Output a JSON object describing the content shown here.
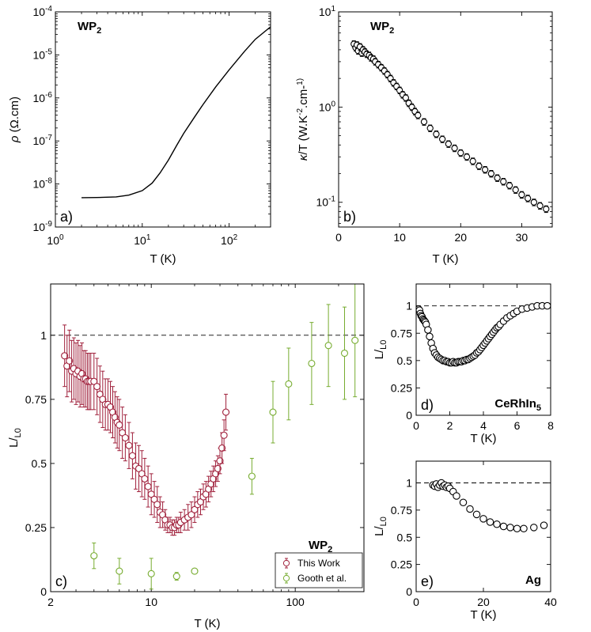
{
  "chart_data": [
    {
      "id": "a",
      "type": "line",
      "panel_label": "a)",
      "annotation": "WP",
      "annotation_sub": "2",
      "xlabel": "T (K)",
      "ylabel": "ρ (Ω.cm)",
      "xscale": "log",
      "yscale": "log",
      "xlim": [
        1,
        300
      ],
      "ylim": [
        1e-09,
        0.0001
      ],
      "xticks": [
        {
          "value": 1,
          "base": "10",
          "exp": "0"
        },
        {
          "value": 10,
          "base": "10",
          "exp": "1"
        },
        {
          "value": 100,
          "base": "10",
          "exp": "2"
        }
      ],
      "yticks": [
        {
          "value": 1e-09,
          "base": "10",
          "exp": "-9"
        },
        {
          "value": 1e-08,
          "base": "10",
          "exp": "-8"
        },
        {
          "value": 1e-07,
          "base": "10",
          "exp": "-7"
        },
        {
          "value": 1e-06,
          "base": "10",
          "exp": "-6"
        },
        {
          "value": 1e-05,
          "base": "10",
          "exp": "-5"
        },
        {
          "value": 0.0001,
          "base": "10",
          "exp": "-4"
        }
      ],
      "series": [
        {
          "color": "#000000",
          "x": [
            2,
            3,
            5,
            7,
            10,
            13,
            16,
            20,
            25,
            30,
            40,
            50,
            70,
            100,
            150,
            200,
            300
          ],
          "y": [
            4.8e-09,
            4.85e-09,
            5e-09,
            5.5e-09,
            7e-09,
            1.05e-08,
            1.8e-08,
            3.6e-08,
            8e-08,
            1.5e-07,
            3.6e-07,
            7e-07,
            1.8e-06,
            4.5e-06,
            1.2e-05,
            2.3e-05,
            4.5e-05
          ]
        }
      ]
    },
    {
      "id": "b",
      "type": "scatter",
      "panel_label": "b)",
      "annotation": "WP",
      "annotation_sub": "2",
      "xlabel": "T (K)",
      "ylabel": "κ/T (W.K-2.cm-1)",
      "xscale": "linear",
      "yscale": "log",
      "xlim": [
        0,
        35
      ],
      "ylim": [
        0.055,
        10
      ],
      "xticks": [
        0,
        10,
        20,
        30
      ],
      "yticks": [
        {
          "value": 0.1,
          "base": "10",
          "exp": "-1"
        },
        {
          "value": 1,
          "base": "10",
          "exp": "0"
        },
        {
          "value": 10,
          "base": "10",
          "exp": "1"
        }
      ],
      "series": [
        {
          "color": "#000000",
          "marker": "open-circle",
          "x": [
            2.5,
            2.8,
            3.0,
            3.2,
            3.5,
            3.8,
            4.0,
            4.3,
            4.6,
            5.0,
            5.3,
            5.7,
            6.0,
            6.5,
            7.0,
            7.5,
            8.0,
            8.5,
            9.0,
            9.5,
            10.0,
            10.5,
            11.0,
            11.5,
            12.0,
            12.5,
            13.0,
            14.0,
            15.0,
            16.0,
            17.0,
            18.0,
            19.0,
            20.0,
            21.0,
            22.0,
            23.0,
            24.0,
            25.0,
            26.0,
            27.0,
            28.0,
            29.0,
            30.0,
            31.0,
            32.0,
            33.0,
            34.0
          ],
          "y": [
            4.6,
            4.2,
            4.5,
            3.9,
            4.3,
            3.7,
            4.0,
            3.8,
            3.6,
            3.5,
            3.3,
            3.2,
            3.0,
            2.8,
            2.6,
            2.4,
            2.2,
            2.0,
            1.8,
            1.65,
            1.5,
            1.35,
            1.25,
            1.1,
            1.0,
            0.9,
            0.82,
            0.7,
            0.6,
            0.52,
            0.46,
            0.41,
            0.37,
            0.33,
            0.3,
            0.27,
            0.24,
            0.22,
            0.2,
            0.18,
            0.165,
            0.15,
            0.135,
            0.12,
            0.11,
            0.1,
            0.092,
            0.085
          ]
        }
      ]
    },
    {
      "id": "c",
      "type": "scatter",
      "panel_label": "c)",
      "annotation": "WP",
      "annotation_sub": "2",
      "xlabel": "T (K)",
      "ylabel": "L/L0",
      "xscale": "log",
      "yscale": "linear",
      "xlim": [
        2,
        300
      ],
      "ylim": [
        0,
        1.2
      ],
      "xticks": [
        {
          "value": 2,
          "label": "2"
        },
        {
          "value": 10,
          "label": "10"
        },
        {
          "value": 100,
          "label": "100"
        }
      ],
      "yticks": [
        {
          "value": 0,
          "label": "0"
        },
        {
          "value": 0.25,
          "label": "0.25"
        },
        {
          "value": 0.5,
          "label": "0.5"
        },
        {
          "value": 0.75,
          "label": "0.75"
        },
        {
          "value": 1,
          "label": "1"
        }
      ],
      "reference_line": 1,
      "legend": {
        "position": "bottom-right",
        "entries": [
          "This Work",
          "Gooth et al."
        ]
      },
      "series": [
        {
          "name": "This Work",
          "color": "#a0213c",
          "marker": "open-circle",
          "x": [
            2.5,
            2.6,
            2.7,
            2.8,
            2.9,
            3.0,
            3.1,
            3.2,
            3.3,
            3.4,
            3.5,
            3.6,
            3.7,
            3.8,
            4.0,
            4.2,
            4.4,
            4.6,
            4.8,
            5.0,
            5.2,
            5.4,
            5.6,
            5.8,
            6.0,
            6.3,
            6.6,
            7.0,
            7.4,
            7.8,
            8.2,
            8.6,
            9.0,
            9.5,
            10.0,
            10.5,
            11.0,
            11.5,
            12.0,
            12.5,
            13.0,
            13.5,
            14.0,
            14.5,
            15.0,
            15.5,
            16.0,
            17.0,
            18.0,
            19.0,
            20.0,
            21.0,
            22.0,
            23.0,
            24.0,
            25.0,
            26.0,
            27.0,
            28.0,
            29.0,
            30.0,
            31.0,
            32.0,
            33.0
          ],
          "y": [
            0.92,
            0.88,
            0.9,
            0.86,
            0.87,
            0.85,
            0.86,
            0.84,
            0.85,
            0.83,
            0.83,
            0.82,
            0.82,
            0.82,
            0.82,
            0.8,
            0.77,
            0.75,
            0.73,
            0.73,
            0.72,
            0.7,
            0.68,
            0.66,
            0.65,
            0.62,
            0.6,
            0.57,
            0.53,
            0.49,
            0.48,
            0.46,
            0.44,
            0.41,
            0.38,
            0.36,
            0.34,
            0.31,
            0.3,
            0.28,
            0.26,
            0.26,
            0.25,
            0.25,
            0.26,
            0.26,
            0.27,
            0.28,
            0.29,
            0.3,
            0.32,
            0.34,
            0.35,
            0.37,
            0.38,
            0.4,
            0.42,
            0.44,
            0.46,
            0.48,
            0.51,
            0.56,
            0.61,
            0.7
          ],
          "err": [
            0.12,
            0.12,
            0.12,
            0.12,
            0.12,
            0.12,
            0.12,
            0.12,
            0.12,
            0.11,
            0.11,
            0.11,
            0.11,
            0.11,
            0.11,
            0.11,
            0.11,
            0.11,
            0.1,
            0.1,
            0.1,
            0.1,
            0.1,
            0.1,
            0.1,
            0.1,
            0.09,
            0.09,
            0.09,
            0.09,
            0.09,
            0.09,
            0.08,
            0.08,
            0.08,
            0.07,
            0.07,
            0.06,
            0.05,
            0.04,
            0.03,
            0.03,
            0.03,
            0.03,
            0.03,
            0.03,
            0.04,
            0.04,
            0.05,
            0.05,
            0.05,
            0.05,
            0.05,
            0.05,
            0.05,
            0.05,
            0.05,
            0.05,
            0.05,
            0.05,
            0.05,
            0.06,
            0.06,
            0.07
          ]
        },
        {
          "name": "Gooth et al.",
          "color": "#77ac30",
          "marker": "open-circle",
          "x": [
            4,
            6,
            10,
            15,
            20,
            50,
            70,
            90,
            130,
            170,
            220,
            260
          ],
          "y": [
            0.14,
            0.08,
            0.07,
            0.06,
            0.08,
            0.45,
            0.7,
            0.81,
            0.89,
            0.96,
            0.93,
            0.98
          ],
          "err": [
            0.05,
            0.05,
            0.06,
            0.015,
            0.01,
            0.07,
            0.12,
            0.14,
            0.16,
            0.16,
            0.18,
            0.22
          ]
        }
      ]
    },
    {
      "id": "d",
      "type": "scatter",
      "panel_label": "d)",
      "annotation": "CeRhIn",
      "annotation_sub": "5",
      "xlabel": "T (K)",
      "ylabel": "L/L0",
      "xscale": "linear",
      "yscale": "linear",
      "xlim": [
        0,
        8
      ],
      "ylim": [
        0,
        1.2
      ],
      "xticks": [
        {
          "value": 0,
          "label": "0"
        },
        {
          "value": 2,
          "label": "2"
        },
        {
          "value": 4,
          "label": "4"
        },
        {
          "value": 6,
          "label": "6"
        },
        {
          "value": 8,
          "label": "8"
        }
      ],
      "yticks": [
        {
          "value": 0,
          "label": "0"
        },
        {
          "value": 0.25,
          "label": "0.25"
        },
        {
          "value": 0.5,
          "label": "0.5"
        },
        {
          "value": 0.75,
          "label": "0.75"
        },
        {
          "value": 1,
          "label": "1"
        }
      ],
      "reference_line": 1,
      "series": [
        {
          "color": "#000000",
          "marker": "open-circle",
          "x": [
            0.15,
            0.2,
            0.25,
            0.3,
            0.35,
            0.4,
            0.45,
            0.5,
            0.55,
            0.6,
            0.7,
            0.8,
            0.9,
            1.0,
            1.1,
            1.2,
            1.3,
            1.4,
            1.5,
            1.6,
            1.7,
            1.8,
            1.9,
            2.0,
            2.1,
            2.2,
            2.3,
            2.4,
            2.5,
            2.6,
            2.7,
            2.8,
            2.9,
            3.0,
            3.1,
            3.2,
            3.3,
            3.4,
            3.5,
            3.6,
            3.7,
            3.8,
            3.9,
            4.0,
            4.1,
            4.2,
            4.3,
            4.4,
            4.5,
            4.6,
            4.7,
            4.8,
            4.9,
            5.0,
            5.2,
            5.4,
            5.6,
            5.8,
            6.0,
            6.3,
            6.6,
            6.9,
            7.2,
            7.5,
            7.8
          ],
          "y": [
            0.97,
            0.96,
            0.93,
            0.91,
            0.9,
            0.88,
            0.87,
            0.86,
            0.85,
            0.83,
            0.78,
            0.72,
            0.66,
            0.61,
            0.57,
            0.55,
            0.53,
            0.52,
            0.51,
            0.5,
            0.5,
            0.49,
            0.49,
            0.48,
            0.48,
            0.49,
            0.48,
            0.48,
            0.49,
            0.49,
            0.49,
            0.5,
            0.5,
            0.51,
            0.51,
            0.52,
            0.53,
            0.54,
            0.55,
            0.57,
            0.58,
            0.6,
            0.62,
            0.64,
            0.66,
            0.68,
            0.7,
            0.72,
            0.74,
            0.76,
            0.78,
            0.8,
            0.81,
            0.83,
            0.86,
            0.89,
            0.91,
            0.93,
            0.95,
            0.97,
            0.98,
            0.99,
            1.0,
            1.0,
            1.0
          ]
        }
      ]
    },
    {
      "id": "e",
      "type": "scatter",
      "panel_label": "e)",
      "annotation": "Ag",
      "xlabel": "T (K)",
      "ylabel": "L/L0",
      "xscale": "linear",
      "yscale": "linear",
      "xlim": [
        0,
        40
      ],
      "ylim": [
        0,
        1.2
      ],
      "xticks": [
        {
          "value": 0,
          "label": "0"
        },
        {
          "value": 20,
          "label": "20"
        },
        {
          "value": 40,
          "label": "40"
        }
      ],
      "yticks": [
        {
          "value": 0,
          "label": "0"
        },
        {
          "value": 0.25,
          "label": "0.25"
        },
        {
          "value": 0.5,
          "label": "0.5"
        },
        {
          "value": 0.75,
          "label": "0.75"
        },
        {
          "value": 1,
          "label": "1"
        }
      ],
      "reference_line": 1,
      "series": [
        {
          "color": "#000000",
          "marker": "open-circle",
          "x": [
            5,
            5.5,
            6,
            6.5,
            7,
            7.5,
            8,
            8.5,
            9,
            9.5,
            10,
            11,
            12,
            14,
            16,
            18,
            20,
            22,
            24,
            26,
            28,
            30,
            32,
            35,
            38
          ],
          "y": [
            0.98,
            0.97,
            0.99,
            0.96,
            0.98,
            1.0,
            0.97,
            0.98,
            0.96,
            0.97,
            0.95,
            0.92,
            0.88,
            0.82,
            0.76,
            0.71,
            0.67,
            0.64,
            0.62,
            0.6,
            0.59,
            0.58,
            0.58,
            0.59,
            0.61
          ]
        }
      ]
    }
  ]
}
